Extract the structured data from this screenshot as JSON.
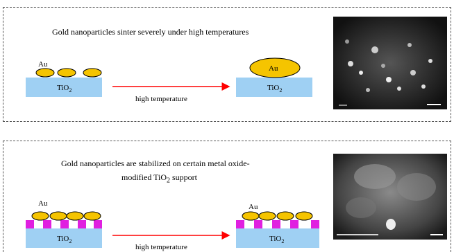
{
  "panels": [
    {
      "caption": "Gold nanoparticles sinter severely under high temperatures",
      "left_particle_label": "Au",
      "right_particle_label": "Au",
      "support_left": {
        "base": "TiO",
        "sub": "2"
      },
      "support_right": {
        "base": "TiO",
        "sub": "2"
      },
      "arrow_label": "high temperature"
    },
    {
      "caption_line1": "Gold nanoparticles are stabilized on certain metal oxide-",
      "caption_line2_pre": "modified TiO",
      "caption_line2_sub": "2",
      "caption_line2_post": " support",
      "left_particle_label": "Au",
      "right_particle_label": "Au",
      "support_left": {
        "base": "TiO",
        "sub": "2"
      },
      "support_right": {
        "base": "TiO",
        "sub": "2"
      },
      "arrow_label": "high temperature"
    }
  ],
  "colors": {
    "gold": "#f5c400",
    "support": "#9fd0f3",
    "modifier": "#e020e0",
    "arrow": "#ff0000",
    "micrograph_dark": "#1a1a1a"
  }
}
